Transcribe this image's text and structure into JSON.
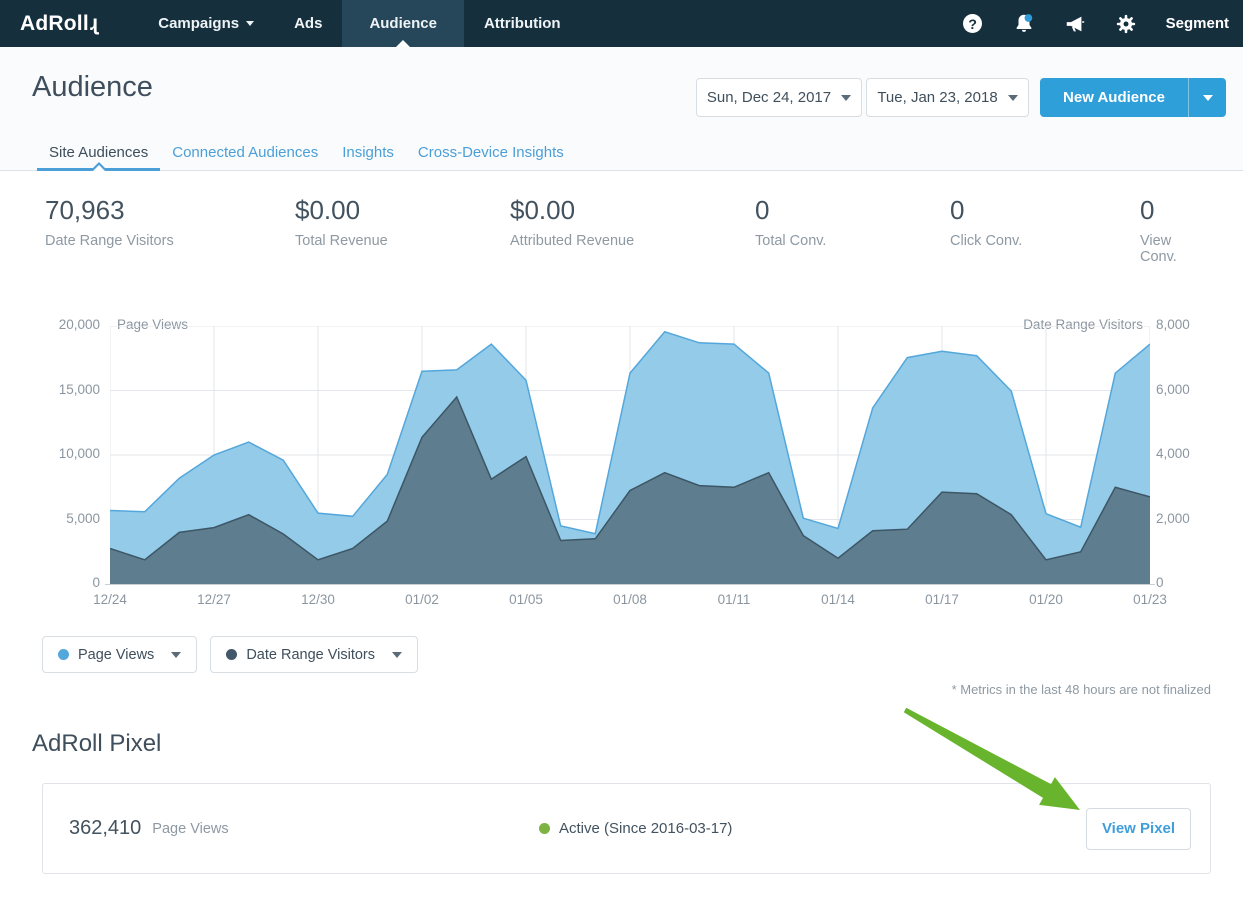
{
  "navbar": {
    "logo_text": "AdRoll",
    "logo_tail": "ɻ",
    "items": [
      {
        "label": "Campaigns",
        "has_caret": true
      },
      {
        "label": "Ads"
      },
      {
        "label": "Audience",
        "active": true
      },
      {
        "label": "Attribution"
      }
    ],
    "right_label": "Segment",
    "notification_dot_color": "#2f9bd8"
  },
  "header": {
    "title": "Audience",
    "date_start": "Sun, Dec 24, 2017",
    "date_end": "Tue, Jan 23, 2018",
    "new_audience_label": "New Audience"
  },
  "tabs": [
    {
      "label": "Site Audiences",
      "active": true
    },
    {
      "label": "Connected Audiences"
    },
    {
      "label": "Insights"
    },
    {
      "label": "Cross-Device Insights"
    }
  ],
  "stats": [
    {
      "value": "70,963",
      "label": "Date Range Visitors"
    },
    {
      "value": "$0.00",
      "label": "Total Revenue"
    },
    {
      "value": "$0.00",
      "label": "Attributed Revenue"
    },
    {
      "value": "0",
      "label": "Total Conv."
    },
    {
      "value": "0",
      "label": "Click Conv."
    },
    {
      "value": "0",
      "label": "View Conv."
    }
  ],
  "chart_data": {
    "type": "area",
    "x_labels": [
      "12/24",
      "12/25",
      "12/26",
      "12/27",
      "12/28",
      "12/29",
      "12/30",
      "12/31",
      "01/01",
      "01/02",
      "01/03",
      "01/04",
      "01/05",
      "01/06",
      "01/07",
      "01/08",
      "01/09",
      "01/10",
      "01/11",
      "01/12",
      "01/13",
      "01/14",
      "01/15",
      "01/16",
      "01/17",
      "01/18",
      "01/19",
      "01/20",
      "01/21",
      "01/22",
      "01/23"
    ],
    "x_tick_labels": [
      "12/24",
      "12/27",
      "12/30",
      "01/02",
      "01/05",
      "01/08",
      "01/11",
      "01/14",
      "01/17",
      "01/20",
      "01/23"
    ],
    "left_axis": {
      "title": "Page Views",
      "max": 20000,
      "min": 0,
      "ticks": [
        "20,000",
        "15,000",
        "10,000",
        "5,000",
        "0"
      ]
    },
    "right_axis": {
      "title": "Date Range Visitors",
      "max": 8000,
      "min": 0,
      "ticks": [
        "8,000",
        "6,000",
        "4,000",
        "2,000",
        "0"
      ]
    },
    "grid": true,
    "legend_position": "bottom-left",
    "series": [
      {
        "name": "Page Views",
        "axis": "left",
        "fill": "#93cbe9",
        "stroke": "#54a7db",
        "values": [
          5700,
          5600,
          8200,
          10000,
          11000,
          9600,
          5500,
          5250,
          8500,
          16500,
          16600,
          18600,
          15800,
          4500,
          3900,
          16350,
          19550,
          18700,
          18600,
          16350,
          5100,
          4300,
          13650,
          17550,
          18050,
          17700,
          14950,
          5450,
          4400,
          16350,
          18600
        ]
      },
      {
        "name": "Date Range Visitors",
        "axis": "right",
        "fill": "#5e7d8e",
        "stroke": "#3d5666",
        "values": [
          1100,
          750,
          1600,
          1750,
          2150,
          1550,
          750,
          1100,
          1950,
          4550,
          5800,
          3250,
          3950,
          1350,
          1400,
          2900,
          3450,
          3050,
          3000,
          3450,
          1500,
          800,
          1650,
          1700,
          2850,
          2800,
          2150,
          750,
          1000,
          3000,
          2700
        ]
      }
    ]
  },
  "legend": [
    {
      "label": "Page Views",
      "color": "#54a7db"
    },
    {
      "label": "Date Range Visitors",
      "color": "#42586a"
    }
  ],
  "footnote": "* Metrics in the last 48 hours are not finalized",
  "pixel_section": {
    "title": "AdRoll Pixel",
    "page_views_value": "362,410",
    "page_views_label": "Page Views",
    "status": "Active (Since 2016-03-17)",
    "status_color": "#7cb342",
    "button_label": "View Pixel"
  },
  "annotation": {
    "arrow_color": "#68b52d"
  }
}
